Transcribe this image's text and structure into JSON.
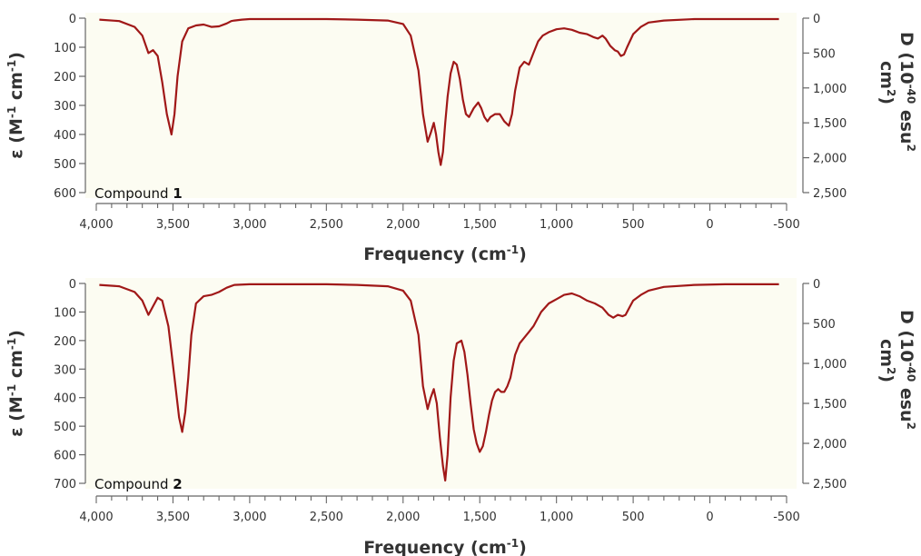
{
  "chart_data": [
    {
      "type": "line",
      "compound_prefix": "Compound ",
      "compound_number": "1",
      "xlabel": "Frequency (cm",
      "xlabel_sup": "-1",
      "xlabel_close": ")",
      "ylabel_left": "ε (M",
      "ylabel_left_sup1": "-1",
      "ylabel_left_mid": " cm",
      "ylabel_left_sup2": "-1",
      "ylabel_left_close": ")",
      "ylabel_right_line1": "D (10",
      "ylabel_right_sup1": "-40",
      "ylabel_right_mid": " esu",
      "ylabel_right_sup2": "2",
      "ylabel_right_line2": "cm",
      "ylabel_right_sup3": "2",
      "ylabel_right_close": ")",
      "xlim": [
        4000,
        -500
      ],
      "ylim_left": [
        0,
        600
      ],
      "ylim_right": [
        0,
        2500
      ],
      "y_inverted": true,
      "x_ticks": [
        "4,000",
        "3,500",
        "3,000",
        "2,500",
        "2,000",
        "1,500",
        "1,000",
        "500",
        "0",
        "-500"
      ],
      "y_left_ticks": [
        "0",
        "100",
        "200",
        "300",
        "400",
        "500",
        "600"
      ],
      "y_right_ticks": [
        "0",
        "500",
        "1,000",
        "1,500",
        "2,000",
        "2,500"
      ],
      "line_color": "#a01818",
      "background_color": "#fcfcf2",
      "series": [
        {
          "x": [
            3980,
            3850,
            3750,
            3700,
            3660,
            3630,
            3600,
            3570,
            3540,
            3510,
            3490,
            3470,
            3440,
            3400,
            3350,
            3300,
            3250,
            3200,
            3150,
            3120,
            3100,
            3050,
            3000,
            2900,
            2700,
            2500,
            2300,
            2100,
            2000,
            1950,
            1900,
            1870,
            1840,
            1820,
            1800,
            1785,
            1770,
            1755,
            1740,
            1725,
            1710,
            1690,
            1670,
            1650,
            1630,
            1610,
            1590,
            1570,
            1540,
            1510,
            1490,
            1470,
            1450,
            1430,
            1400,
            1370,
            1340,
            1310,
            1290,
            1270,
            1240,
            1210,
            1180,
            1150,
            1120,
            1090,
            1050,
            1000,
            950,
            900,
            850,
            800,
            760,
            730,
            700,
            680,
            650,
            620,
            600,
            580,
            560,
            540,
            500,
            450,
            400,
            300,
            100,
            -100,
            -300,
            -450
          ],
          "y": [
            5,
            10,
            30,
            60,
            120,
            110,
            130,
            220,
            330,
            400,
            330,
            200,
            80,
            35,
            25,
            22,
            30,
            28,
            18,
            10,
            8,
            5,
            3,
            3,
            3,
            3,
            5,
            8,
            20,
            60,
            180,
            330,
            425,
            395,
            360,
            400,
            460,
            505,
            460,
            360,
            270,
            190,
            150,
            160,
            210,
            280,
            330,
            340,
            310,
            290,
            310,
            340,
            355,
            340,
            330,
            330,
            355,
            370,
            330,
            250,
            170,
            150,
            160,
            120,
            80,
            60,
            48,
            38,
            35,
            40,
            50,
            55,
            65,
            70,
            60,
            70,
            95,
            110,
            115,
            130,
            125,
            100,
            55,
            30,
            15,
            8,
            3,
            3,
            3,
            3
          ]
        }
      ]
    },
    {
      "type": "line",
      "compound_prefix": "Compound ",
      "compound_number": "2",
      "xlabel": "Frequency (cm",
      "xlabel_sup": "-1",
      "xlabel_close": ")",
      "ylabel_left": "ε (M",
      "ylabel_left_sup1": "-1",
      "ylabel_left_mid": " cm",
      "ylabel_left_sup2": "-1",
      "ylabel_left_close": ")",
      "ylabel_right_line1": "D (10",
      "ylabel_right_sup1": "-40",
      "ylabel_right_mid": " esu",
      "ylabel_right_sup2": "2",
      "ylabel_right_line2": "cm",
      "ylabel_right_sup3": "2",
      "ylabel_right_close": ")",
      "xlim": [
        4000,
        -500
      ],
      "ylim_left": [
        0,
        700
      ],
      "ylim_right": [
        0,
        2500
      ],
      "y_inverted": true,
      "x_ticks": [
        "4,000",
        "3,500",
        "3,000",
        "2,500",
        "2,000",
        "1,500",
        "1,000",
        "500",
        "0",
        "-500"
      ],
      "y_left_ticks": [
        "0",
        "100",
        "200",
        "300",
        "400",
        "500",
        "600",
        "700"
      ],
      "y_right_ticks": [
        "0",
        "500",
        "1,000",
        "1,500",
        "2,000",
        "2,500"
      ],
      "line_color": "#a01818",
      "background_color": "#fcfcf2",
      "series": [
        {
          "x": [
            3980,
            3850,
            3750,
            3700,
            3660,
            3630,
            3600,
            3570,
            3530,
            3490,
            3460,
            3440,
            3420,
            3400,
            3380,
            3350,
            3300,
            3250,
            3200,
            3150,
            3100,
            3000,
            2900,
            2700,
            2500,
            2300,
            2100,
            2000,
            1950,
            1900,
            1870,
            1840,
            1820,
            1800,
            1780,
            1760,
            1740,
            1725,
            1710,
            1690,
            1670,
            1650,
            1620,
            1600,
            1580,
            1560,
            1540,
            1520,
            1500,
            1480,
            1460,
            1440,
            1420,
            1400,
            1380,
            1360,
            1340,
            1320,
            1300,
            1270,
            1240,
            1210,
            1180,
            1150,
            1100,
            1050,
            1000,
            950,
            900,
            850,
            800,
            750,
            700,
            660,
            630,
            600,
            570,
            550,
            520,
            500,
            450,
            400,
            300,
            100,
            -100,
            -300,
            -450
          ],
          "y": [
            5,
            10,
            30,
            60,
            110,
            80,
            50,
            60,
            150,
            330,
            470,
            520,
            450,
            330,
            180,
            70,
            45,
            40,
            30,
            15,
            5,
            3,
            3,
            3,
            3,
            5,
            10,
            25,
            60,
            180,
            360,
            440,
            400,
            370,
            420,
            540,
            640,
            690,
            600,
            400,
            270,
            210,
            200,
            240,
            320,
            420,
            510,
            560,
            590,
            570,
            520,
            460,
            410,
            380,
            370,
            380,
            380,
            360,
            330,
            250,
            210,
            190,
            170,
            150,
            100,
            70,
            55,
            40,
            35,
            45,
            60,
            70,
            85,
            110,
            120,
            110,
            115,
            110,
            80,
            60,
            40,
            25,
            12,
            5,
            3,
            3,
            3
          ]
        }
      ]
    }
  ]
}
